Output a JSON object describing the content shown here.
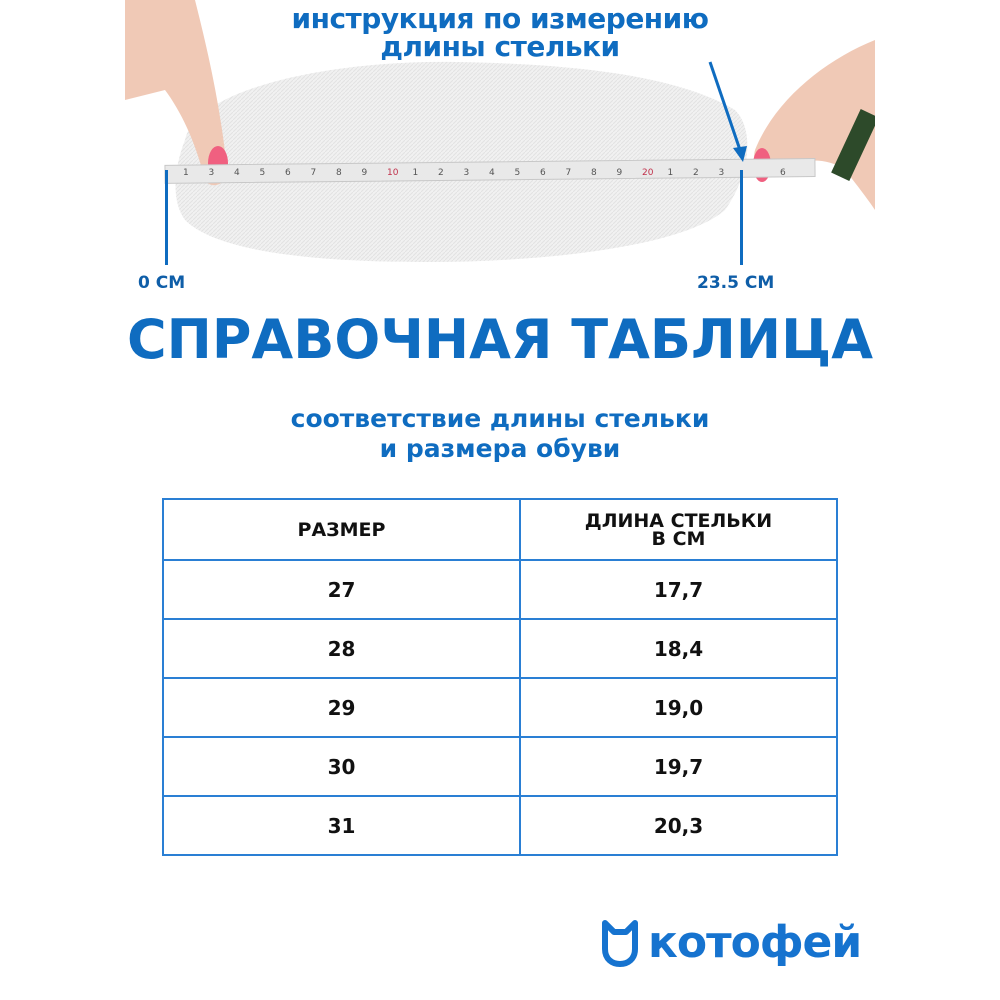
{
  "instruction": {
    "line1": "инструкция по измерению",
    "line2": "длины стельки"
  },
  "markers": {
    "start": "0 СМ",
    "end": "23.5 СМ"
  },
  "title": "СПРАВОЧНАЯ ТАБЛИЦА",
  "subtitle": {
    "line1": "соответствие длины стельки",
    "line2": "и размера обуви"
  },
  "table": {
    "headers": [
      "РАЗМЕР",
      "ДЛИНА СТЕЛЬКИ",
      "В СМ"
    ],
    "rows": [
      [
        "27",
        "17,7"
      ],
      [
        "28",
        "18,4"
      ],
      [
        "29",
        "19,0"
      ],
      [
        "30",
        "19,7"
      ],
      [
        "31",
        "20,3"
      ]
    ]
  },
  "tape_ticks": [
    "1",
    "3",
    "4",
    "5",
    "6",
    "7",
    "8",
    "9",
    "10",
    "1",
    "2",
    "3",
    "4",
    "5",
    "6",
    "7",
    "8",
    "9",
    "20",
    "1",
    "2",
    "3",
    "6"
  ],
  "brand": {
    "name": "котофей",
    "color": "#1673cf"
  },
  "colors": {
    "accent": "#0f6cc0",
    "table_border": "#2a7fd4"
  }
}
